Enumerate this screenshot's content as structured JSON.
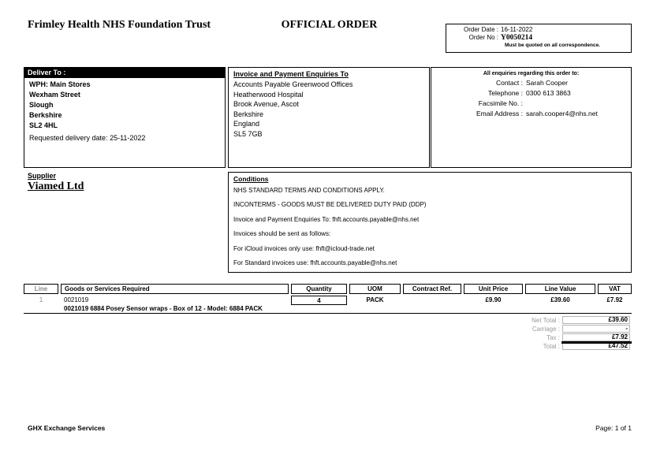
{
  "header": {
    "trust_name": "Frimley Health NHS Foundation Trust",
    "doc_title": "OFFICIAL ORDER"
  },
  "order_box": {
    "date_label": "Order Date :",
    "date_value": "16-11-2022",
    "no_label": "Order No :",
    "no_value": "Y0050214",
    "note": "Must be quoted on all correspondence."
  },
  "deliver_to": {
    "header": "Deliver To :",
    "lines": [
      "WPH: Main Stores",
      "Wexham Street",
      "Slough",
      "Berkshire",
      "SL2 4HL"
    ],
    "requested": "Requested delivery date: 25-11-2022"
  },
  "invoice_to": {
    "header": "Invoice and Payment Enquiries To",
    "lines": [
      "Accounts Payable Greenwood Offices",
      "Heatherwood Hospital",
      "Brook Avenue, Ascot",
      "Berkshire",
      "England",
      "SL5 7GB"
    ]
  },
  "enquiries": {
    "title": "All enquiries regarding this order to:",
    "rows": [
      {
        "label": "Contact :",
        "value": "Sarah Cooper"
      },
      {
        "label": "Telephone :",
        "value": "0300 613 3863"
      },
      {
        "label": "Facsimile No. :",
        "value": ""
      },
      {
        "label": "Email Address :",
        "value": "sarah.cooper4@nhs.net"
      }
    ]
  },
  "supplier": {
    "label": "Supplier",
    "name": "Viamed Ltd"
  },
  "conditions": {
    "title": "Conditions",
    "lines": [
      "NHS STANDARD TERMS AND CONDITIONS APPLY.",
      "INCONTERMS - GOODS MUST BE DELIVERED DUTY PAID (DDP)",
      "Invoice and Payment Enquiries To: fhft.accounts.payable@nhs.net",
      "Invoices should be sent as follows:",
      "For iCloud invoices only use: fhft@icloud-trade.net",
      "For Standard invoices use: fhft.accounts.payable@nhs.net"
    ]
  },
  "items_table": {
    "headers": [
      "Line",
      "Goods or Services Required",
      "Quantity",
      "UOM",
      "Contract Ref.",
      "Unit Price",
      "Line Value",
      "VAT"
    ],
    "rows": [
      {
        "line": "1",
        "code": "0021019",
        "description": "0021019 6884 Posey Sensor wraps - Box of 12 - Model: 6884 PACK",
        "quantity": "4",
        "uom": "PACK",
        "contract_ref": "",
        "unit_price": "£9.90",
        "line_value": "£39.60",
        "vat": "£7.92"
      }
    ]
  },
  "totals": {
    "net_label": "Net Total :",
    "net_value": "£39.60",
    "carriage_label": "Carriage :",
    "carriage_value": "-",
    "tax_label": "Tax :",
    "tax_value": "£7.92",
    "total_label": "Total :",
    "total_value": "£47.52"
  },
  "footer": {
    "left": "GHX Exchange Services",
    "right": "Page: 1 of 1"
  }
}
